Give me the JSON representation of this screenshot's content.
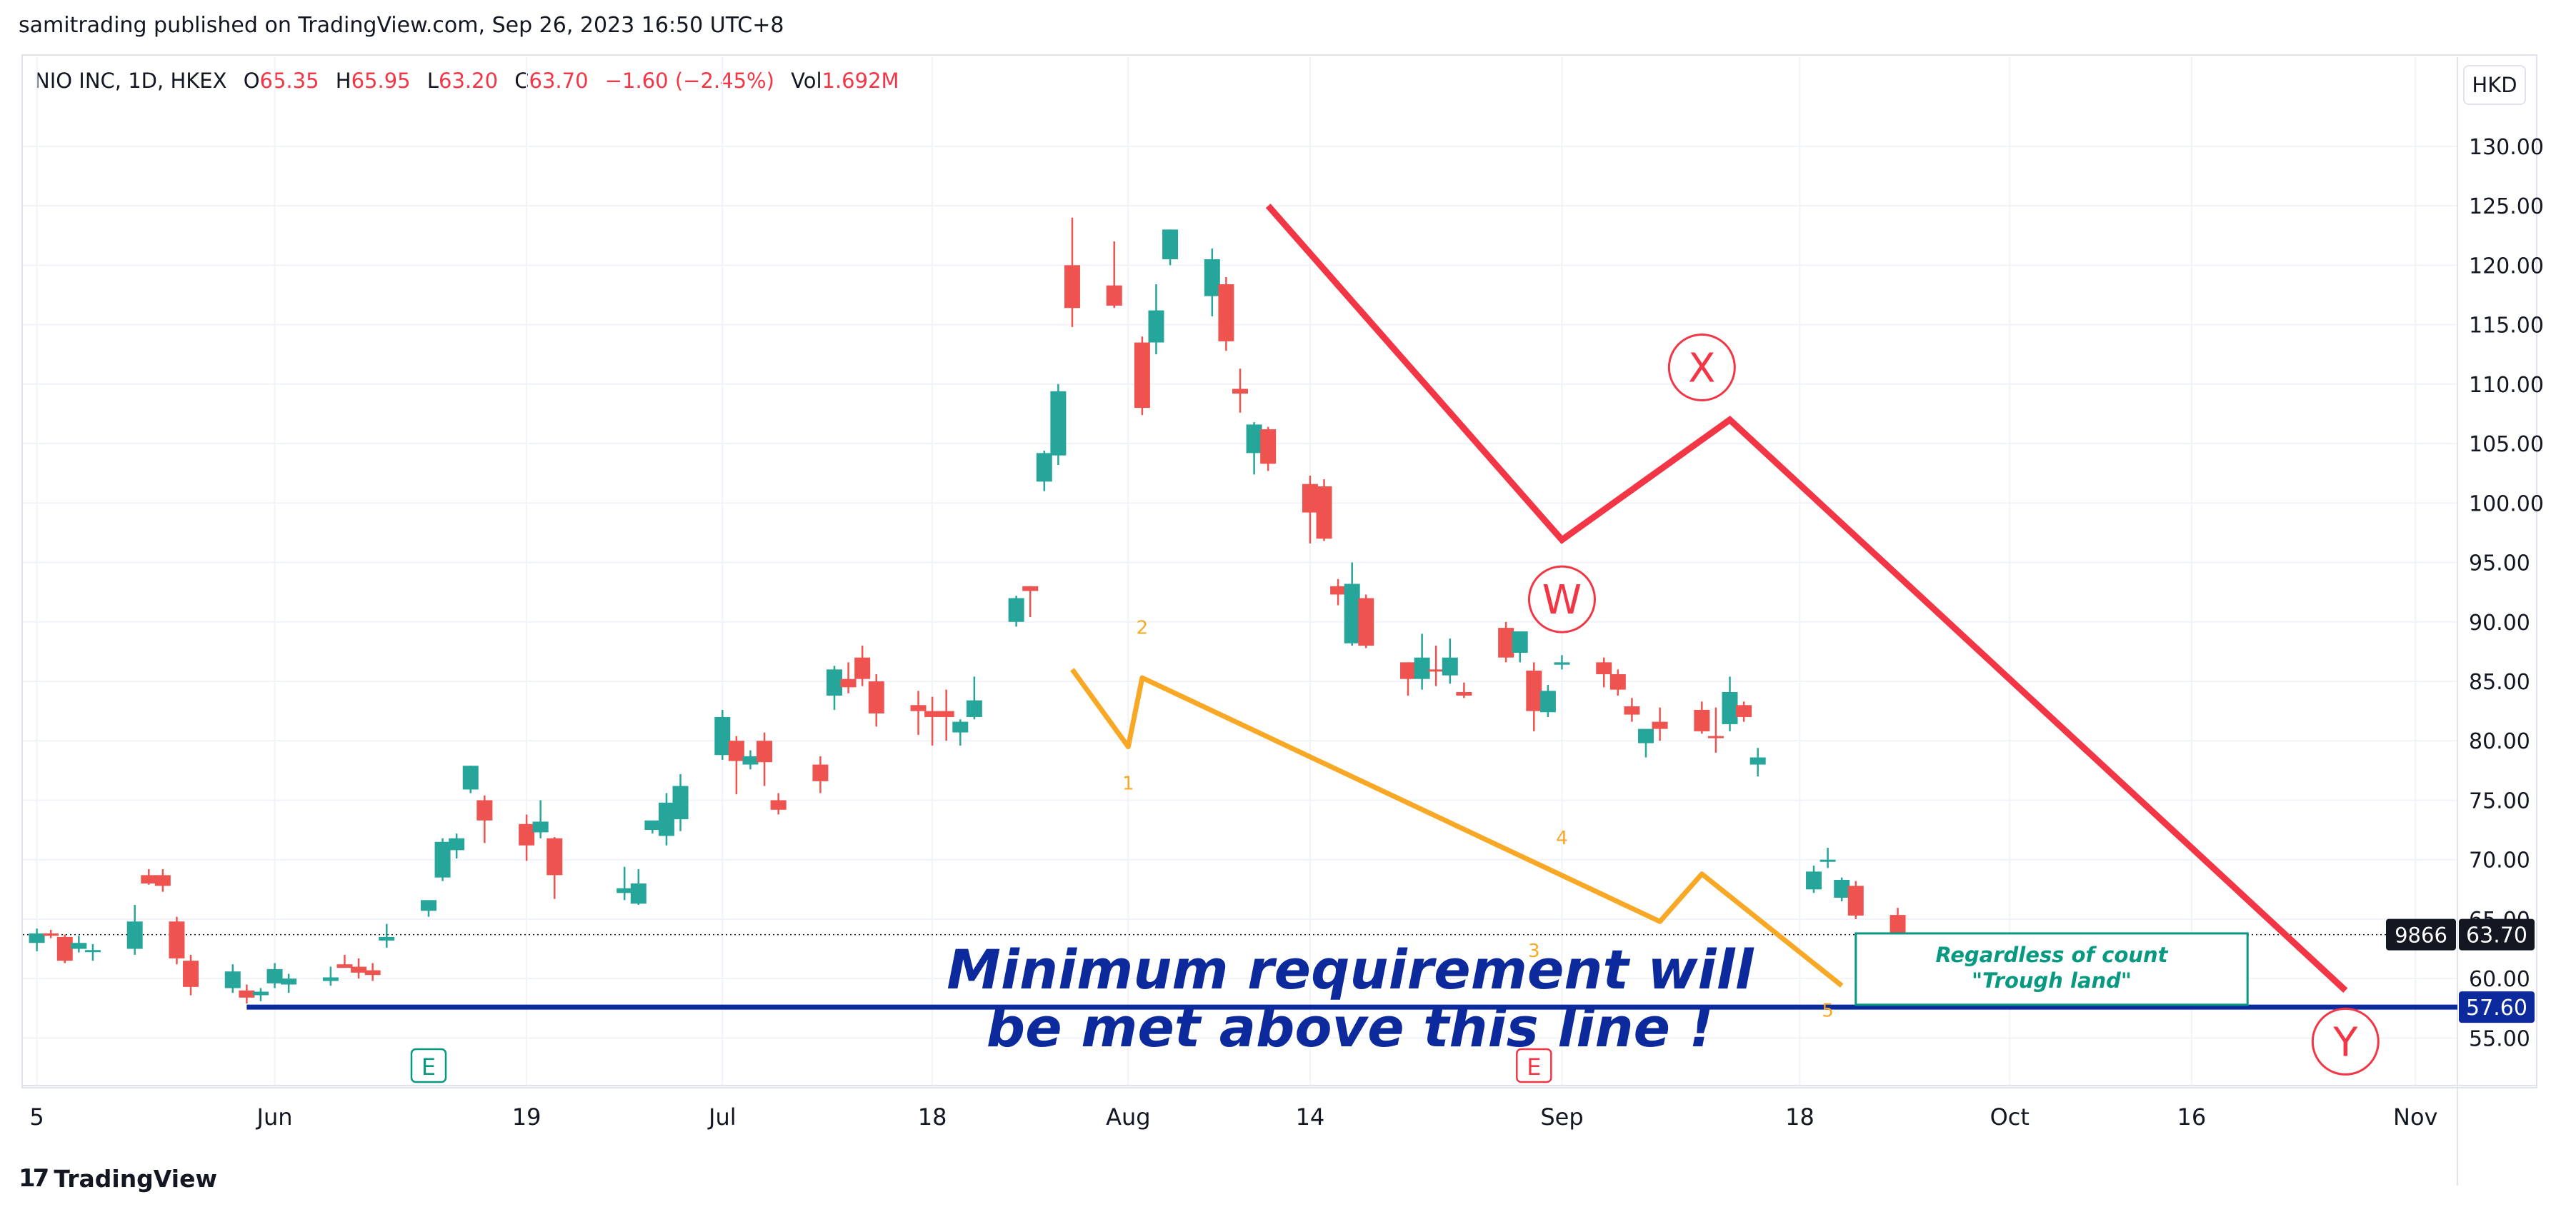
{
  "header": {
    "caption": "samitrading published on TradingView.com, Sep 26, 2023 16:50 UTC+8"
  },
  "symbol_bar": {
    "name": "NIO INC, 1D, HKEX",
    "open_label": "O",
    "open": "65.35",
    "high_label": "H",
    "high": "65.95",
    "low_label": "L",
    "low": "63.20",
    "close_label": "C",
    "close": "63.70",
    "change": "−1.60 (−2.45%)",
    "vol_label": "Vol",
    "vol": "1.692M"
  },
  "currency": "HKD",
  "footer": {
    "brand": "TradingView",
    "logo_glyph": "17"
  },
  "colors": {
    "up": "#26a69a",
    "down": "#ef5350",
    "red_line": "#f23645",
    "orange": "#f9a825",
    "blue": "#0d2a9c",
    "teal_box": "#089981"
  },
  "chart_data": {
    "type": "candlestick",
    "ylim": [
      51.0,
      137.5
    ],
    "yticks": [
      55,
      60,
      65,
      70,
      75,
      80,
      85,
      90,
      95,
      100,
      105,
      110,
      115,
      120,
      125,
      130
    ],
    "ytick_labels": [
      "55.00",
      "60.00",
      "65.00",
      "70.00",
      "75.00",
      "80.00",
      "85.00",
      "90.00",
      "95.00",
      "100.00",
      "105.00",
      "110.00",
      "115.00",
      "120.00",
      "125.00",
      "130.00"
    ],
    "xticks": [
      {
        "date": "2023-05-15",
        "label": "5"
      },
      {
        "date": "2023-06-01",
        "label": "Jun"
      },
      {
        "date": "2023-06-19",
        "label": "19"
      },
      {
        "date": "2023-07-03",
        "label": "Jul"
      },
      {
        "date": "2023-07-18",
        "label": "18"
      },
      {
        "date": "2023-08-01",
        "label": "Aug"
      },
      {
        "date": "2023-08-14",
        "label": "14"
      },
      {
        "date": "2023-09-01",
        "label": "Sep"
      },
      {
        "date": "2023-09-18",
        "label": "18"
      },
      {
        "date": "2023-10-03",
        "label": "Oct"
      },
      {
        "date": "2023-10-16",
        "label": "16"
      },
      {
        "date": "2023-11-01",
        "label": "Nov"
      }
    ],
    "candles": [
      {
        "date": "2023-05-15",
        "o": 63.0,
        "h": 64.2,
        "l": 62.3,
        "c": 63.8
      },
      {
        "date": "2023-05-16",
        "o": 63.8,
        "h": 64.1,
        "l": 63.4,
        "c": 63.6
      },
      {
        "date": "2023-05-17",
        "o": 63.5,
        "h": 63.7,
        "l": 61.3,
        "c": 61.5
      },
      {
        "date": "2023-05-18",
        "o": 62.5,
        "h": 63.6,
        "l": 62.2,
        "c": 63.0
      },
      {
        "date": "2023-05-19",
        "o": 62.3,
        "h": 62.9,
        "l": 61.5,
        "c": 62.4
      },
      {
        "date": "2023-05-22",
        "o": 62.5,
        "h": 66.2,
        "l": 62.0,
        "c": 64.8
      },
      {
        "date": "2023-05-23",
        "o": 68.7,
        "h": 69.2,
        "l": 67.9,
        "c": 68.0
      },
      {
        "date": "2023-05-24",
        "o": 68.7,
        "h": 69.2,
        "l": 67.3,
        "c": 67.8
      },
      {
        "date": "2023-05-25",
        "o": 64.8,
        "h": 65.2,
        "l": 61.2,
        "c": 61.7
      },
      {
        "date": "2023-05-26",
        "o": 61.5,
        "h": 62.0,
        "l": 58.6,
        "c": 59.3
      },
      {
        "date": "2023-05-29",
        "o": 59.2,
        "h": 61.2,
        "l": 58.8,
        "c": 60.6
      },
      {
        "date": "2023-05-30",
        "o": 59.0,
        "h": 59.5,
        "l": 57.9,
        "c": 58.4
      },
      {
        "date": "2023-05-31",
        "o": 58.6,
        "h": 59.2,
        "l": 58.1,
        "c": 58.9
      },
      {
        "date": "2023-06-01",
        "o": 59.6,
        "h": 61.3,
        "l": 59.2,
        "c": 60.8
      },
      {
        "date": "2023-06-02",
        "o": 59.5,
        "h": 60.4,
        "l": 58.8,
        "c": 60.0
      },
      {
        "date": "2023-06-05",
        "o": 59.8,
        "h": 61.0,
        "l": 59.4,
        "c": 60.1
      },
      {
        "date": "2023-06-06",
        "o": 61.2,
        "h": 62.0,
        "l": 60.9,
        "c": 60.9
      },
      {
        "date": "2023-06-07",
        "o": 61.0,
        "h": 61.7,
        "l": 60.0,
        "c": 60.5
      },
      {
        "date": "2023-06-08",
        "o": 60.7,
        "h": 61.3,
        "l": 59.8,
        "c": 60.3
      },
      {
        "date": "2023-06-09",
        "o": 63.2,
        "h": 64.6,
        "l": 62.6,
        "c": 63.5
      },
      {
        "date": "2023-06-12",
        "o": 65.7,
        "h": 66.3,
        "l": 65.2,
        "c": 66.6
      },
      {
        "date": "2023-06-13",
        "o": 68.5,
        "h": 71.8,
        "l": 68.2,
        "c": 71.5
      },
      {
        "date": "2023-06-14",
        "o": 70.8,
        "h": 72.2,
        "l": 70.1,
        "c": 71.8
      },
      {
        "date": "2023-06-15",
        "o": 75.9,
        "h": 77.9,
        "l": 75.6,
        "c": 77.9
      },
      {
        "date": "2023-06-16",
        "o": 75.0,
        "h": 75.4,
        "l": 71.4,
        "c": 73.3
      },
      {
        "date": "2023-06-19",
        "o": 73.0,
        "h": 73.8,
        "l": 69.9,
        "c": 71.2
      },
      {
        "date": "2023-06-20",
        "o": 72.3,
        "h": 75.0,
        "l": 71.8,
        "c": 73.2
      },
      {
        "date": "2023-06-21",
        "o": 71.8,
        "h": 71.9,
        "l": 66.7,
        "c": 68.7
      },
      {
        "date": "2023-06-26",
        "o": 67.2,
        "h": 69.4,
        "l": 66.6,
        "c": 67.6
      },
      {
        "date": "2023-06-27",
        "o": 66.3,
        "h": 69.2,
        "l": 66.2,
        "c": 68.0
      },
      {
        "date": "2023-06-28",
        "o": 72.5,
        "h": 73.2,
        "l": 72.2,
        "c": 73.3
      },
      {
        "date": "2023-06-29",
        "o": 72.0,
        "h": 75.6,
        "l": 71.2,
        "c": 74.8
      },
      {
        "date": "2023-06-30",
        "o": 73.4,
        "h": 77.2,
        "l": 72.4,
        "c": 76.2
      },
      {
        "date": "2023-07-03",
        "o": 78.8,
        "h": 82.6,
        "l": 78.4,
        "c": 82.0
      },
      {
        "date": "2023-07-04",
        "o": 80.0,
        "h": 80.4,
        "l": 75.5,
        "c": 78.3
      },
      {
        "date": "2023-07-05",
        "o": 78.0,
        "h": 79.2,
        "l": 77.6,
        "c": 78.7
      },
      {
        "date": "2023-07-06",
        "o": 80.0,
        "h": 80.7,
        "l": 76.2,
        "c": 78.2
      },
      {
        "date": "2023-07-07",
        "o": 75.0,
        "h": 75.6,
        "l": 73.8,
        "c": 74.2
      },
      {
        "date": "2023-07-10",
        "o": 78.0,
        "h": 78.7,
        "l": 75.6,
        "c": 76.6
      },
      {
        "date": "2023-07-11",
        "o": 83.8,
        "h": 86.3,
        "l": 82.6,
        "c": 86.0
      },
      {
        "date": "2023-07-12",
        "o": 85.2,
        "h": 86.6,
        "l": 84.0,
        "c": 84.5
      },
      {
        "date": "2023-07-13",
        "o": 87.0,
        "h": 88.0,
        "l": 84.6,
        "c": 85.2
      },
      {
        "date": "2023-07-14",
        "o": 85.0,
        "h": 85.6,
        "l": 81.2,
        "c": 82.3
      },
      {
        "date": "2023-07-17",
        "o": 83.0,
        "h": 84.2,
        "l": 80.5,
        "c": 82.5
      },
      {
        "date": "2023-07-18",
        "o": 82.5,
        "h": 83.7,
        "l": 79.6,
        "c": 82.0
      },
      {
        "date": "2023-07-19",
        "o": 82.5,
        "h": 84.3,
        "l": 80.0,
        "c": 82.0
      },
      {
        "date": "2023-07-20",
        "o": 80.7,
        "h": 81.8,
        "l": 79.6,
        "c": 81.6
      },
      {
        "date": "2023-07-21",
        "o": 82.0,
        "h": 85.4,
        "l": 81.8,
        "c": 83.4
      },
      {
        "date": "2023-07-24",
        "o": 90.0,
        "h": 92.2,
        "l": 89.6,
        "c": 92.0
      },
      {
        "date": "2023-07-25",
        "o": 93.0,
        "h": 93.0,
        "l": 90.4,
        "c": 92.6
      },
      {
        "date": "2023-07-26",
        "o": 101.8,
        "h": 104.4,
        "l": 101.0,
        "c": 104.2
      },
      {
        "date": "2023-07-27",
        "o": 104.0,
        "h": 110.0,
        "l": 103.2,
        "c": 109.4
      },
      {
        "date": "2023-07-28",
        "o": 120.0,
        "h": 124.0,
        "l": 114.8,
        "c": 116.4
      },
      {
        "date": "2023-07-31",
        "o": 118.3,
        "h": 122.0,
        "l": 116.4,
        "c": 116.6
      },
      {
        "date": "2023-08-02",
        "o": 113.5,
        "h": 114.0,
        "l": 107.4,
        "c": 108.0
      },
      {
        "date": "2023-08-03",
        "o": 113.5,
        "h": 118.4,
        "l": 112.5,
        "c": 116.2
      },
      {
        "date": "2023-08-04",
        "o": 120.5,
        "h": 123.0,
        "l": 120.0,
        "c": 123.0
      },
      {
        "date": "2023-08-07",
        "o": 117.4,
        "h": 121.4,
        "l": 115.7,
        "c": 120.5
      },
      {
        "date": "2023-08-08",
        "o": 118.4,
        "h": 119.0,
        "l": 112.8,
        "c": 113.6
      },
      {
        "date": "2023-08-09",
        "o": 109.6,
        "h": 111.3,
        "l": 107.6,
        "c": 109.2
      },
      {
        "date": "2023-08-10",
        "o": 104.2,
        "h": 106.8,
        "l": 102.4,
        "c": 106.6
      },
      {
        "date": "2023-08-11",
        "o": 106.2,
        "h": 106.4,
        "l": 102.7,
        "c": 103.3
      },
      {
        "date": "2023-08-14",
        "o": 101.6,
        "h": 102.3,
        "l": 96.6,
        "c": 99.2
      },
      {
        "date": "2023-08-15",
        "o": 101.4,
        "h": 102.0,
        "l": 96.8,
        "c": 97.0
      },
      {
        "date": "2023-08-16",
        "o": 93.0,
        "h": 93.6,
        "l": 91.4,
        "c": 92.3
      },
      {
        "date": "2023-08-17",
        "o": 88.2,
        "h": 95.0,
        "l": 88.0,
        "c": 93.2
      },
      {
        "date": "2023-08-18",
        "o": 92.0,
        "h": 92.3,
        "l": 87.8,
        "c": 88.0
      },
      {
        "date": "2023-08-21",
        "o": 86.6,
        "h": 86.6,
        "l": 83.8,
        "c": 85.2
      },
      {
        "date": "2023-08-22",
        "o": 85.2,
        "h": 89.0,
        "l": 84.3,
        "c": 87.0
      },
      {
        "date": "2023-08-23",
        "o": 86.0,
        "h": 88.0,
        "l": 84.6,
        "c": 85.9
      },
      {
        "date": "2023-08-24",
        "o": 85.5,
        "h": 88.6,
        "l": 84.8,
        "c": 87.0
      },
      {
        "date": "2023-08-25",
        "o": 84.1,
        "h": 84.9,
        "l": 83.6,
        "c": 83.8
      },
      {
        "date": "2023-08-28",
        "o": 89.5,
        "h": 90.0,
        "l": 86.6,
        "c": 87.0
      },
      {
        "date": "2023-08-29",
        "o": 87.4,
        "h": 89.0,
        "l": 86.6,
        "c": 89.2
      },
      {
        "date": "2023-08-30",
        "o": 85.9,
        "h": 86.6,
        "l": 80.8,
        "c": 82.5
      },
      {
        "date": "2023-08-31",
        "o": 82.4,
        "h": 84.7,
        "l": 82.0,
        "c": 84.2
      },
      {
        "date": "2023-09-01",
        "o": 86.4,
        "h": 87.2,
        "l": 86.0,
        "c": 86.6
      },
      {
        "date": "2023-09-04",
        "o": 86.6,
        "h": 87.0,
        "l": 84.5,
        "c": 85.6
      },
      {
        "date": "2023-09-05",
        "o": 85.6,
        "h": 86.0,
        "l": 83.8,
        "c": 84.3
      },
      {
        "date": "2023-09-06",
        "o": 82.9,
        "h": 83.6,
        "l": 81.6,
        "c": 82.2
      },
      {
        "date": "2023-09-07",
        "o": 79.8,
        "h": 81.0,
        "l": 78.6,
        "c": 81.0
      },
      {
        "date": "2023-09-08",
        "o": 81.6,
        "h": 82.8,
        "l": 80.0,
        "c": 81.0
      },
      {
        "date": "2023-09-11",
        "o": 82.6,
        "h": 83.3,
        "l": 80.6,
        "c": 80.8
      },
      {
        "date": "2023-09-12",
        "o": 80.4,
        "h": 82.8,
        "l": 79.0,
        "c": 80.3
      },
      {
        "date": "2023-09-13",
        "o": 81.4,
        "h": 85.4,
        "l": 80.8,
        "c": 84.1
      },
      {
        "date": "2023-09-14",
        "o": 83.0,
        "h": 83.3,
        "l": 81.6,
        "c": 82.0
      },
      {
        "date": "2023-09-15",
        "o": 78.0,
        "h": 79.4,
        "l": 77.0,
        "c": 78.6
      },
      {
        "date": "2023-09-19",
        "o": 67.5,
        "h": 69.5,
        "l": 67.2,
        "c": 69.0
      },
      {
        "date": "2023-09-20",
        "o": 70.0,
        "h": 71.0,
        "l": 69.3,
        "c": 70.0
      },
      {
        "date": "2023-09-21",
        "o": 66.8,
        "h": 68.5,
        "l": 66.5,
        "c": 68.3
      },
      {
        "date": "2023-09-22",
        "o": 67.8,
        "h": 68.2,
        "l": 65.0,
        "c": 65.3
      },
      {
        "date": "2023-09-25",
        "o": 65.35,
        "h": 65.95,
        "l": 63.2,
        "c": 63.7
      }
    ],
    "last_price": {
      "value": 63.7,
      "label": "63.70",
      "countdown": "9866"
    },
    "level_line": {
      "value": 57.6,
      "label": "57.60"
    },
    "red_wxy_path": [
      {
        "date": "2023-08-11",
        "price": 125.0
      },
      {
        "date": "2023-09-01",
        "price": 96.9
      },
      {
        "date": "2023-09-13",
        "price": 107.0
      },
      {
        "date": "2023-10-27",
        "price": 59.0
      }
    ],
    "orange_wave_path": [
      {
        "date": "2023-07-28",
        "price": 86.0
      },
      {
        "date": "2023-08-01",
        "price": 79.5
      },
      {
        "date": "2023-08-02",
        "price": 85.3
      },
      {
        "date": "2023-09-08",
        "price": 64.8
      },
      {
        "date": "2023-09-11",
        "price": 68.8
      },
      {
        "date": "2023-09-21",
        "price": 59.4
      }
    ],
    "wave_labels": [
      {
        "text": "W",
        "date": "2023-09-01",
        "price": 91.9,
        "style": "circle"
      },
      {
        "text": "X",
        "date": "2023-09-11",
        "price": 111.4,
        "style": "circle"
      },
      {
        "text": "Y",
        "date": "2023-10-27",
        "price": 54.7,
        "style": "circle"
      },
      {
        "text": "1",
        "date": "2023-08-01",
        "price": 75.9,
        "style": "small"
      },
      {
        "text": "2",
        "date": "2023-08-02",
        "price": 89.0,
        "style": "small"
      },
      {
        "text": "3",
        "date": "2023-08-30",
        "price": 61.8,
        "style": "small"
      },
      {
        "text": "4",
        "date": "2023-09-01",
        "price": 71.3,
        "style": "small"
      },
      {
        "text": "5",
        "date": "2023-09-20",
        "price": 56.8,
        "style": "small"
      }
    ],
    "event_markers": [
      {
        "text": "E",
        "date": "2023-06-12",
        "color": "#089981"
      },
      {
        "text": "E",
        "date": "2023-08-30",
        "color": "#f23645"
      }
    ],
    "annotation": {
      "line1": "Minimum requirement will",
      "line2": "be met above this line !",
      "color": "#0d2a9c"
    },
    "box": {
      "line1": "Regardless of count",
      "line2": "\"Trough land\"",
      "date_from": "2023-09-22",
      "date_to": "2023-10-20",
      "price_top": 63.8,
      "price_bottom": 57.8
    }
  }
}
